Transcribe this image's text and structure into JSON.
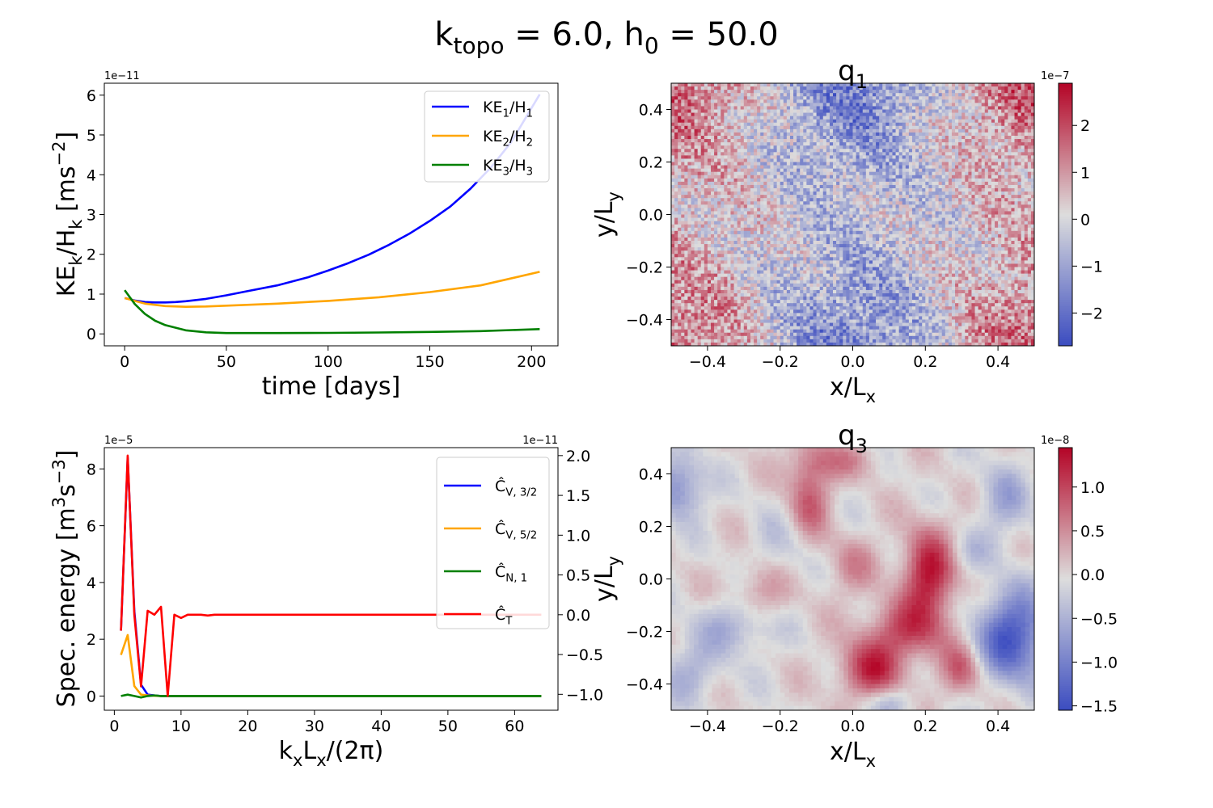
{
  "figure": {
    "suptitle": "k",
    "suptitle_sub": "topo",
    "suptitle_rest": " = 6.0, h",
    "suptitle_sub2": "0",
    "suptitle_end": " = 50.0"
  },
  "colors": {
    "blue": "#0000ff",
    "orange": "#ffa500",
    "green": "#008000",
    "red": "#ff0000",
    "cmap_low": "#3b4cc0",
    "cmap_mid": "#dddddd",
    "cmap_high": "#b40426"
  },
  "chart_data": [
    {
      "id": "ke_timeseries",
      "type": "line",
      "title": "",
      "xlabel": "time   [days]",
      "ylabel": "KE_k/H_k   [ms^-2]",
      "ylabel_parts": {
        "a": "KE",
        "sub_a": "k",
        "b": "/H",
        "sub_b": "k",
        "c": "   [ms",
        "sup": "−2",
        "d": "]"
      },
      "offset_text": "1e−11",
      "xlim": [
        -10,
        213
      ],
      "ylim": [
        -0.3,
        6.3
      ],
      "xticks": [
        0,
        50,
        100,
        150,
        200
      ],
      "yticks": [
        0,
        1,
        2,
        3,
        4,
        5,
        6
      ],
      "legend": {
        "position": "top-right"
      },
      "series": [
        {
          "name": "KE1/H1",
          "label": "KE",
          "sub": "1",
          "label2": "/H",
          "sub2": "1",
          "color": "#0000ff",
          "x": [
            0,
            5,
            10,
            15,
            20,
            25,
            30,
            40,
            50,
            60,
            75,
            90,
            100,
            110,
            120,
            130,
            140,
            150,
            160,
            170,
            180,
            190,
            204
          ],
          "y": [
            0.9,
            0.84,
            0.8,
            0.79,
            0.79,
            0.8,
            0.82,
            0.88,
            0.97,
            1.07,
            1.22,
            1.42,
            1.59,
            1.78,
            1.99,
            2.24,
            2.52,
            2.84,
            3.2,
            3.65,
            4.18,
            4.82,
            6.02
          ]
        },
        {
          "name": "KE2/H2",
          "label": "KE",
          "sub": "2",
          "label2": "/H",
          "sub2": "2",
          "color": "#ffa500",
          "x": [
            0,
            5,
            10,
            20,
            30,
            40,
            50,
            75,
            100,
            125,
            150,
            175,
            204
          ],
          "y": [
            0.9,
            0.83,
            0.76,
            0.7,
            0.68,
            0.69,
            0.71,
            0.76,
            0.83,
            0.92,
            1.05,
            1.22,
            1.56
          ]
        },
        {
          "name": "KE3/H3",
          "label": "KE",
          "sub": "3",
          "label2": "/H",
          "sub2": "3",
          "color": "#008000",
          "x": [
            0,
            5,
            10,
            15,
            20,
            30,
            40,
            50,
            75,
            100,
            125,
            150,
            175,
            204
          ],
          "y": [
            1.1,
            0.75,
            0.5,
            0.33,
            0.22,
            0.09,
            0.04,
            0.02,
            0.02,
            0.025,
            0.035,
            0.05,
            0.07,
            0.12
          ]
        }
      ]
    },
    {
      "id": "spectral_energy",
      "type": "line",
      "title": "",
      "xlabel": "k_xL_x/(2π)",
      "xlabel_parts": {
        "a": "k",
        "sub_a": "x",
        "b": "L",
        "sub_b": "x",
        "c": "/(2π)"
      },
      "ylabel": "Spec.  energy   [m^3s^-3]",
      "ylabel_parts": {
        "a": "Spec.  energy   [m",
        "sup": "3",
        "b": "s",
        "sup2": "−3",
        "c": "]"
      },
      "offset_text_left": "1e−5",
      "offset_text_right": "1e−11",
      "xlim": [
        -1.5,
        66.5
      ],
      "ylim": [
        -0.5,
        8.75
      ],
      "ylim_right": [
        -1.2,
        2.1
      ],
      "xticks": [
        0,
        10,
        20,
        30,
        40,
        50,
        60
      ],
      "yticks": [
        0,
        2,
        4,
        6,
        8
      ],
      "yticks_right": [
        -1.0,
        -0.5,
        0.0,
        0.5,
        1.0,
        1.5,
        2.0
      ],
      "legend": {
        "position": "top-right"
      },
      "series": [
        {
          "name": "C_V,3/2",
          "label": "Ĉ",
          "sub": "V, 3/2",
          "color": "#0000ff",
          "axis": "left",
          "x": [
            1,
            2,
            3,
            4,
            5,
            6,
            7,
            8,
            9,
            10,
            64
          ],
          "y": [
            2.3,
            8.4,
            3.0,
            0.4,
            0.05,
            0.02,
            0.0,
            0.0,
            0.0,
            0.0,
            0.0
          ]
        },
        {
          "name": "C_V,5/2",
          "label": "Ĉ",
          "sub": "V, 5/2",
          "color": "#ffa500",
          "axis": "left",
          "x": [
            1,
            2,
            3,
            4,
            5,
            6,
            7,
            8,
            9,
            10,
            64
          ],
          "y": [
            1.45,
            2.15,
            0.35,
            0.05,
            0.02,
            0.01,
            0.0,
            0.0,
            0.0,
            0.0,
            0.0
          ]
        },
        {
          "name": "C_N,1",
          "label": "Ĉ",
          "sub": "N, 1",
          "color": "#008000",
          "axis": "left",
          "x": [
            1,
            2,
            3,
            4,
            5,
            6,
            7,
            8,
            9,
            10,
            64
          ],
          "y": [
            0.0,
            0.05,
            0.0,
            -0.05,
            0.0,
            0.02,
            0.0,
            0.0,
            0.0,
            0.0,
            0.0
          ]
        },
        {
          "name": "C_T",
          "label": "Ĉ",
          "sub": "T",
          "color": "#ff0000",
          "axis": "right",
          "x": [
            1,
            2,
            3,
            4,
            5,
            6,
            7,
            8,
            9,
            10,
            11,
            12,
            13,
            14,
            15,
            64
          ],
          "y": [
            -0.2,
            2.0,
            0.0,
            -0.9,
            0.05,
            0.0,
            0.1,
            -1.02,
            0.0,
            -0.04,
            0.0,
            0.0,
            0.0,
            -0.01,
            0.0,
            0.0
          ]
        }
      ]
    },
    {
      "id": "q1_map",
      "type": "heatmap",
      "title": "q",
      "title_sub": "1",
      "xlabel": "x/L",
      "xlabel_sub": "x",
      "ylabel": "y/L",
      "ylabel_sub": "y",
      "xlim": [
        -0.5,
        0.5
      ],
      "ylim": [
        -0.5,
        0.5
      ],
      "xticks": [
        -0.4,
        -0.2,
        0.0,
        0.2,
        0.4
      ],
      "xtick_labels": [
        "−0.4",
        "−0.2",
        "0.0",
        "0.2",
        "0.4"
      ],
      "yticks": [
        -0.4,
        -0.2,
        0.0,
        0.2,
        0.4
      ],
      "ytick_labels": [
        "−0.4",
        "−0.2",
        "0.0",
        "0.2",
        "0.4"
      ],
      "colorbar": {
        "offset_text": "1e−7",
        "vmin": -2.7,
        "vmax": 2.9,
        "ticks": [
          -2,
          -1,
          0,
          1,
          2
        ],
        "tick_labels": [
          "−2",
          "−1",
          "0",
          "1",
          "2"
        ]
      },
      "grid_resolution": [
        110,
        80
      ],
      "pattern": "fine"
    },
    {
      "id": "q3_map",
      "type": "heatmap",
      "title": "q",
      "title_sub": "3",
      "xlabel": "x/L",
      "xlabel_sub": "x",
      "ylabel": "y/L",
      "ylabel_sub": "y",
      "xlim": [
        -0.5,
        0.5
      ],
      "ylim": [
        -0.5,
        0.5
      ],
      "xticks": [
        -0.4,
        -0.2,
        0.0,
        0.2,
        0.4
      ],
      "xtick_labels": [
        "−0.4",
        "−0.2",
        "0.0",
        "0.2",
        "0.4"
      ],
      "yticks": [
        -0.4,
        -0.2,
        0.0,
        0.2,
        0.4
      ],
      "ytick_labels": [
        "−0.4",
        "−0.2",
        "0.0",
        "0.2",
        "0.4"
      ],
      "colorbar": {
        "offset_text": "1e−8",
        "vmin": -1.55,
        "vmax": 1.45,
        "ticks": [
          -1.5,
          -1.0,
          -0.5,
          0.0,
          0.5,
          1.0
        ],
        "tick_labels": [
          "−1.5",
          "−1.0",
          "−0.5",
          "0.0",
          "0.5",
          "1.0"
        ]
      },
      "grid_resolution": [
        80,
        60
      ],
      "pattern": "smooth"
    }
  ]
}
